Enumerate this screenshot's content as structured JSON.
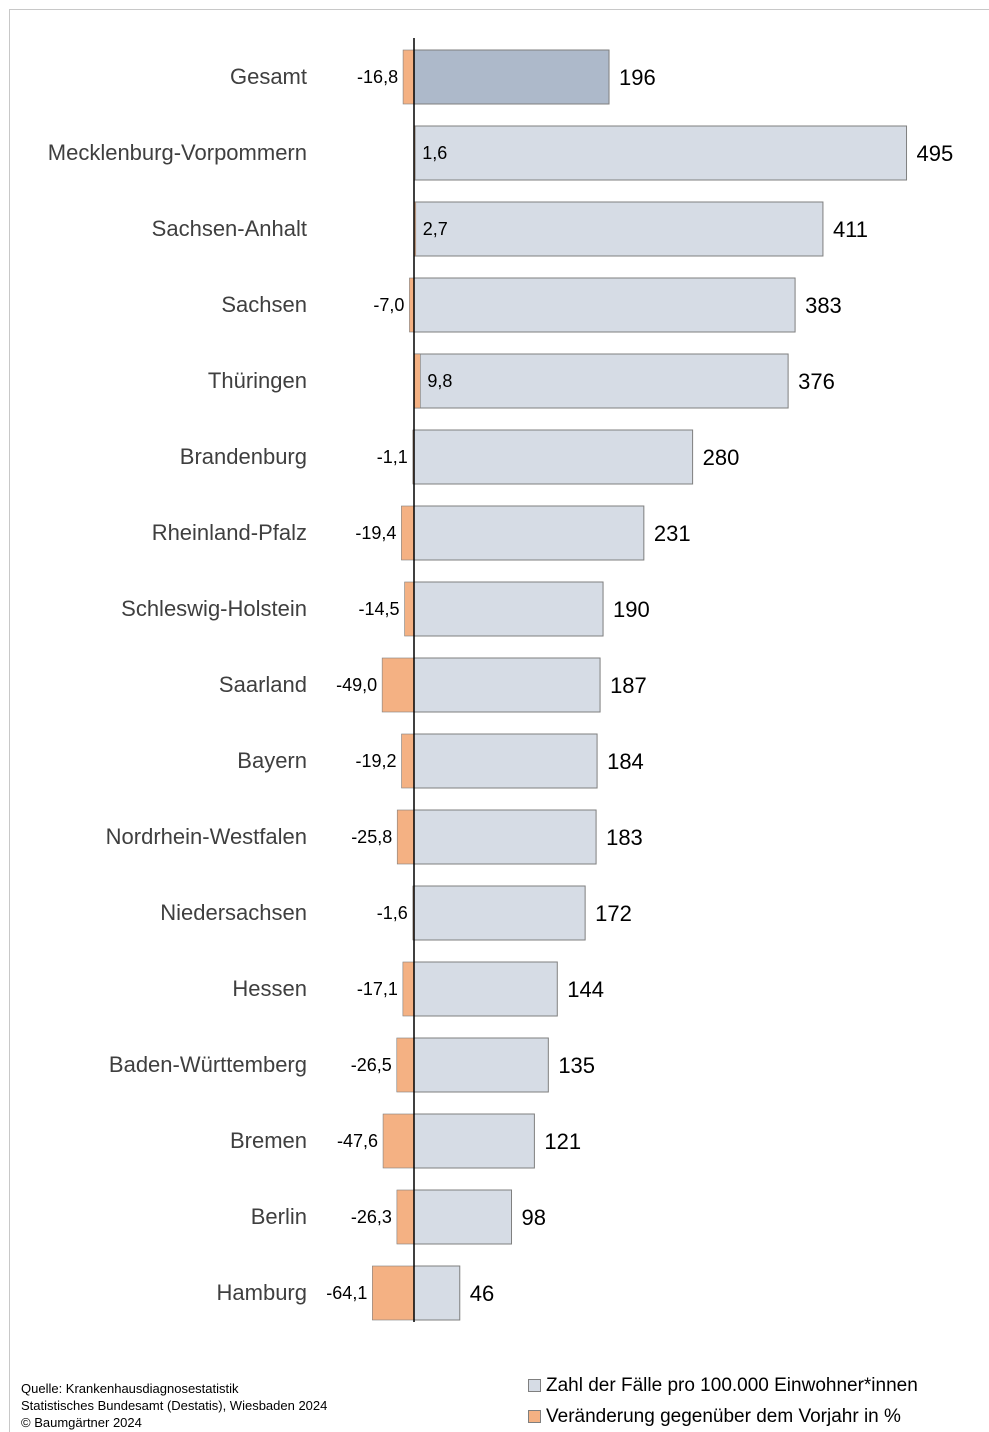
{
  "chart_data": {
    "type": "bar",
    "orientation": "horizontal",
    "categories": [
      "Gesamt",
      "Mecklenburg-Vorpommern",
      "Sachsen-Anhalt",
      "Sachsen",
      "Thüringen",
      "Brandenburg",
      "Rheinland-Pfalz",
      "Schleswig-Holstein",
      "Saarland",
      "Bayern",
      "Nordrhein-Westfalen",
      "Niedersachsen",
      "Hessen",
      "Baden-Württemberg",
      "Bremen",
      "Berlin",
      "Hamburg"
    ],
    "series": [
      {
        "name": "Zahl der Fälle pro 100.000 Einwohner*innen",
        "values": [
          196,
          495,
          411,
          383,
          376,
          280,
          231,
          190,
          187,
          184,
          183,
          172,
          144,
          135,
          121,
          98,
          46
        ],
        "labels": [
          "196",
          "495",
          "411",
          "383",
          "376",
          "280",
          "231",
          "190",
          "187",
          "184",
          "183",
          "172",
          "144",
          "135",
          "121",
          "98",
          "46"
        ]
      },
      {
        "name": "Veränderung gegenüber dem Vorjahr in %",
        "values": [
          -16.8,
          1.6,
          2.7,
          -7.0,
          9.8,
          -1.1,
          -19.4,
          -14.5,
          -49.0,
          -19.2,
          -25.8,
          -1.6,
          -17.1,
          -26.5,
          -47.6,
          -26.3,
          -64.1
        ],
        "labels": [
          "-16,8",
          "1,6",
          "2,7",
          "-7,0",
          "9,8",
          "-1,1",
          "-19,4",
          "-14,5",
          "-49,0",
          "-19,2",
          "-25,8",
          "-1,6",
          "-17,1",
          "-26,5",
          "-47,6",
          "-26,3",
          "-64,1"
        ]
      }
    ],
    "colors": {
      "total_bar": "#adb9ca",
      "state_bar": "#d6dce5",
      "change_bar": "#f4b183",
      "bar_border": "#7f7f7f",
      "axis": "#000000"
    },
    "highlight_first_category": true,
    "legend_position": "bottom-right"
  },
  "source": {
    "lines": [
      "Quelle: Krankenhausdiagnosestatistik",
      "Statistisches Bundesamt (Destatis), Wiesbaden 2024",
      "© Baumgärtner 2024"
    ]
  },
  "legend": {
    "items": [
      "Zahl der Fälle pro 100.000 Einwohner*innen",
      "Veränderung gegenüber dem Vorjahr in %"
    ]
  }
}
